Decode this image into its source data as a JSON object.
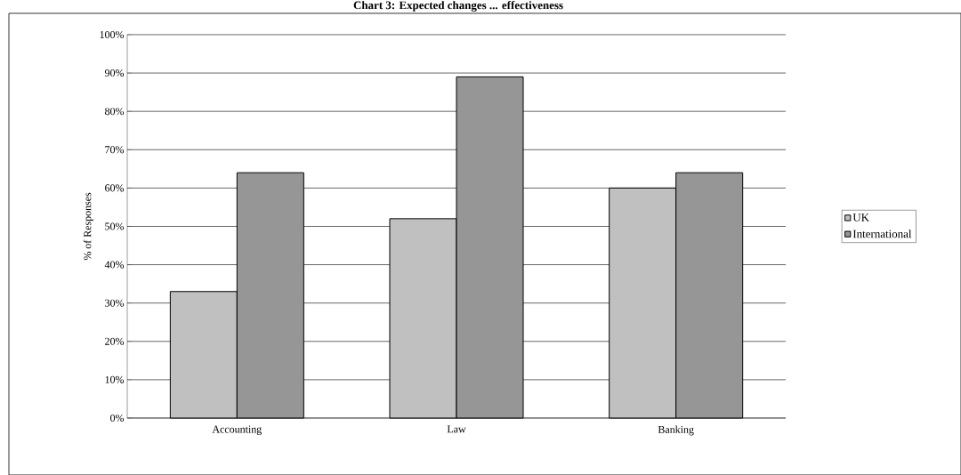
{
  "chart_data": {
    "type": "bar",
    "title": "Chart 3: Expected changes ... effectiveness",
    "ylabel": "% of Responses",
    "categories": [
      "Accounting",
      "Law",
      "Banking"
    ],
    "series": [
      {
        "name": "UK",
        "color": "#c0c0c0",
        "values": [
          33,
          52,
          60
        ]
      },
      {
        "name": "International",
        "color": "#969696",
        "values": [
          64,
          89,
          64
        ]
      }
    ],
    "ylim": [
      0,
      100
    ],
    "yticks": [
      {
        "value": 0,
        "label": "0%"
      },
      {
        "value": 10,
        "label": "10%"
      },
      {
        "value": 20,
        "label": "20%"
      },
      {
        "value": 30,
        "label": "30%"
      },
      {
        "value": 40,
        "label": "40%"
      },
      {
        "value": 50,
        "label": "50%"
      },
      {
        "value": 60,
        "label": "60%"
      },
      {
        "value": 70,
        "label": "70%"
      },
      {
        "value": 80,
        "label": "80%"
      },
      {
        "value": 90,
        "label": "90%"
      },
      {
        "value": 100,
        "label": "100%"
      }
    ],
    "grid": "y",
    "legend": "right"
  }
}
